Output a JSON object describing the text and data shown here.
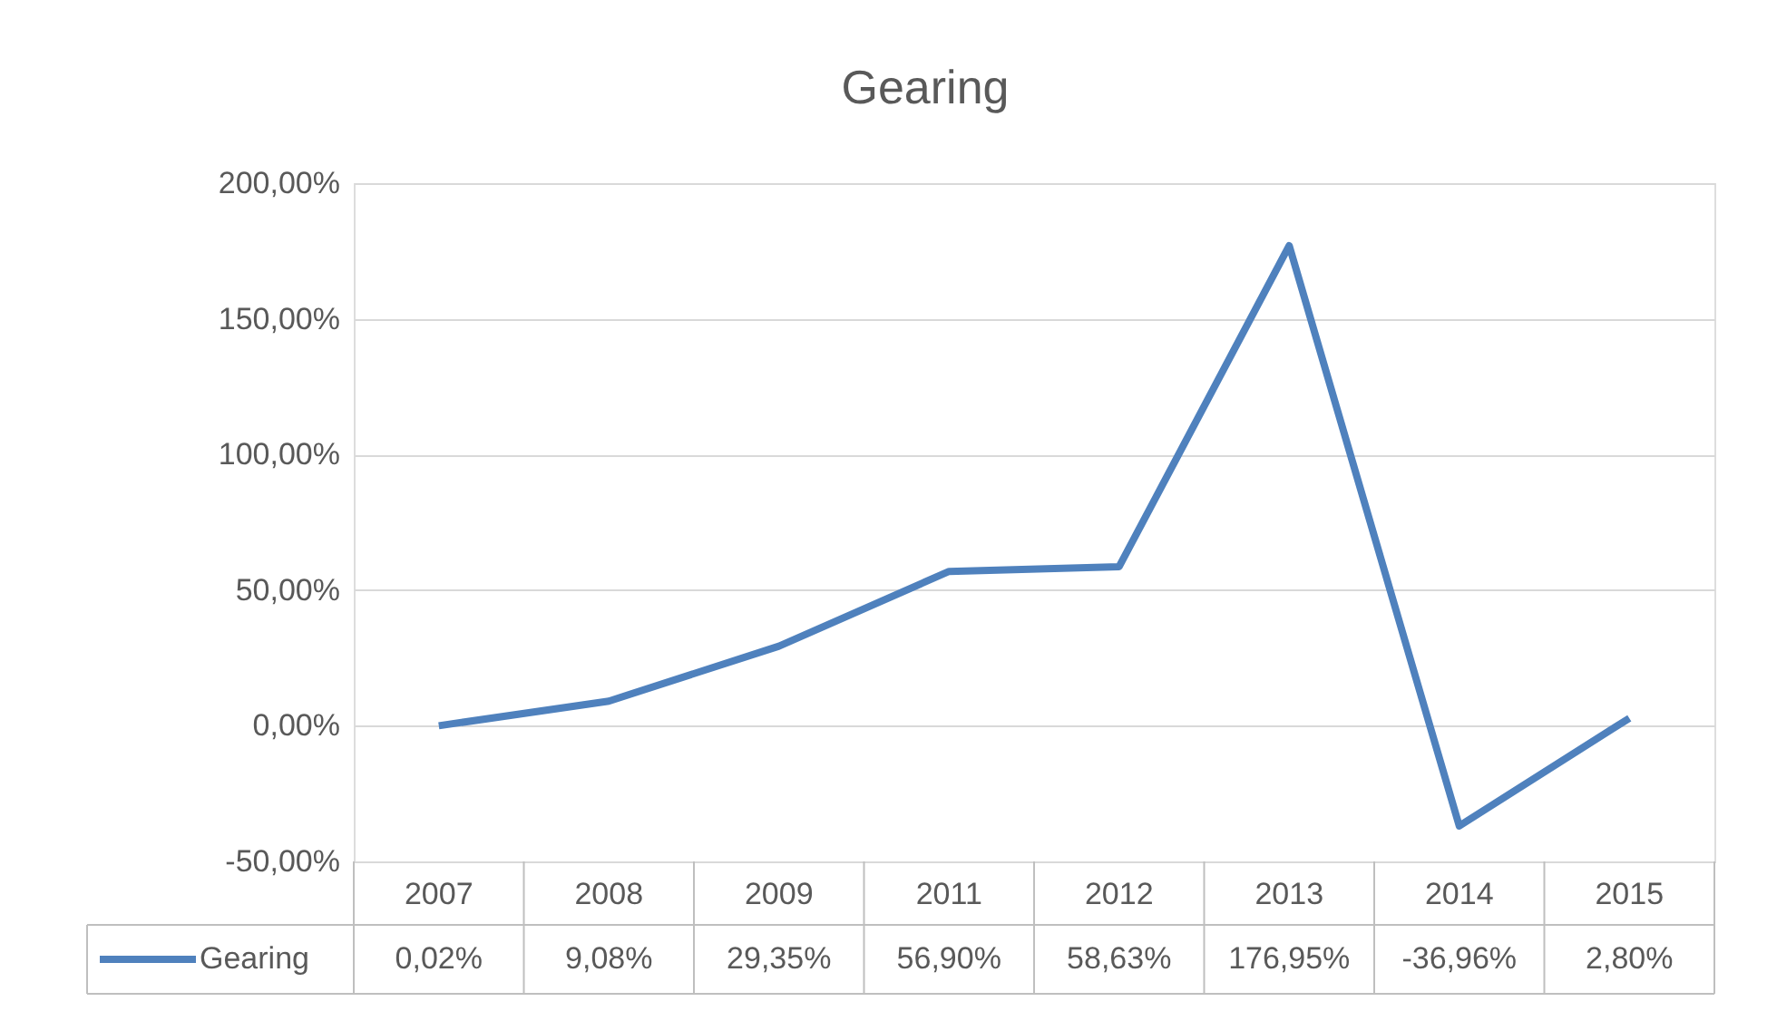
{
  "chart_data": {
    "type": "line",
    "title": "Gearing",
    "categories": [
      "2007",
      "2008",
      "2009",
      "2011",
      "2012",
      "2013",
      "2014",
      "2015"
    ],
    "series": [
      {
        "name": "Gearing",
        "color": "#4f81bd",
        "values": [
          0.02,
          9.08,
          29.35,
          56.9,
          58.63,
          176.95,
          -36.96,
          2.8
        ],
        "value_labels": [
          "0,02%",
          "9,08%",
          "29,35%",
          "56,90%",
          "58,63%",
          "176,95%",
          "-36,96%",
          "2,80%"
        ]
      }
    ],
    "ylim": [
      -50,
      200
    ],
    "yticks": [
      {
        "value": -50,
        "label": "-50,00%"
      },
      {
        "value": 0,
        "label": "0,00%"
      },
      {
        "value": 50,
        "label": "50,00%"
      },
      {
        "value": 100,
        "label": "100,00%"
      },
      {
        "value": 150,
        "label": "150,00%"
      },
      {
        "value": 200,
        "label": "200,00%"
      }
    ],
    "grid": "y",
    "legend": "bottom",
    "data_labels": true,
    "line_style": "solid",
    "marker": "none"
  }
}
